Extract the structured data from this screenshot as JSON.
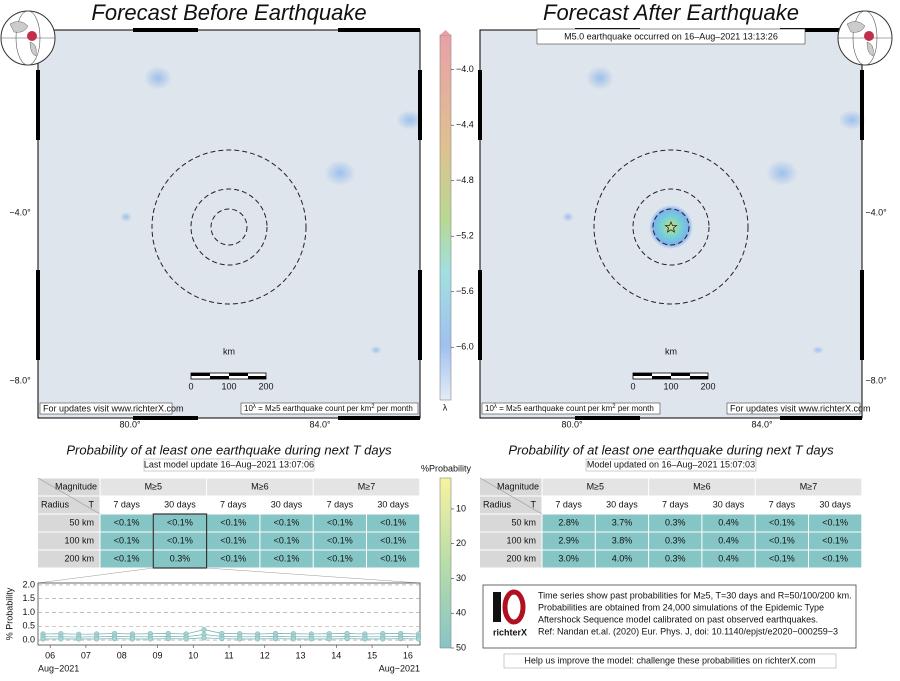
{
  "maps": [
    {
      "title": "Forecast Before Earthquake",
      "updates": "For updates visit www.richterX.com",
      "legend_parts": [
        "10",
        "λ",
        " = M≥5 earthquake count per km",
        "2",
        " per month"
      ],
      "lat_labels": [
        "−4.0°",
        "−8.0°"
      ],
      "lon_labels": [
        "80.0°",
        "84.0°"
      ],
      "scale": {
        "unit": "km",
        "labels": [
          "0",
          "100",
          "200"
        ]
      }
    },
    {
      "title": "Forecast After Earthquake",
      "annotation": "M5.0 earthquake occurred on 16–Aug–2021 13:13:26",
      "updates": "For updates visit www.richterX.com",
      "legend_parts": [
        "10",
        "λ",
        " = M≥5 earthquake count per km",
        "2",
        " per month"
      ],
      "lat_labels": [
        "−4.0°",
        "−8.0°"
      ],
      "lon_labels": [
        "80.0°",
        "84.0°"
      ],
      "scale": {
        "unit": "km",
        "labels": [
          "0",
          "100",
          "200"
        ]
      }
    }
  ],
  "rate_colorbar": {
    "label": "λ",
    "clim": [
      -3.75,
      -6.38
    ],
    "ticks": [
      {
        "value": -4.0,
        "label": "−4.0"
      },
      {
        "value": -4.4,
        "label": "−4.4"
      },
      {
        "value": -4.8,
        "label": "−4.8"
      },
      {
        "value": -5.2,
        "label": "−5.2"
      },
      {
        "value": -5.6,
        "label": "−5.6"
      },
      {
        "value": -6.0,
        "label": "−6.0"
      }
    ]
  },
  "prob_colorbar": {
    "label": "%Probability",
    "clim": [
      1.1,
      50
    ],
    "ticks": [
      10,
      20,
      30,
      40,
      50
    ]
  },
  "tables": [
    {
      "title": "Probability of at least one earthquake during next T days",
      "subtitle": "Last model update 16–Aug–2021 13:07:06",
      "corner": {
        "magnitude": "Magnitude",
        "radius": "Radius",
        "t": "T"
      },
      "magnitudes": [
        "M≥5",
        "M≥6",
        "M≥7"
      ],
      "periods": [
        "7 days",
        "30 days",
        "7 days",
        "30 days",
        "7 days",
        "30 days"
      ],
      "rows": [
        {
          "label": "50 km",
          "cells": [
            "<0.1%",
            "<0.1%",
            "<0.1%",
            "<0.1%",
            "<0.1%",
            "<0.1%"
          ]
        },
        {
          "label": "100 km",
          "cells": [
            "<0.1%",
            "<0.1%",
            "<0.1%",
            "<0.1%",
            "<0.1%",
            "<0.1%"
          ]
        },
        {
          "label": "200 km",
          "cells": [
            "<0.1%",
            "0.3%",
            "<0.1%",
            "<0.1%",
            "<0.1%",
            "<0.1%"
          ]
        }
      ]
    },
    {
      "title": "Probability of at least one earthquake during next T days",
      "subtitle": "Model updated on 16–Aug–2021 15:07:03",
      "corner": {
        "magnitude": "Magnitude",
        "radius": "Radius",
        "t": "T"
      },
      "magnitudes": [
        "M≥5",
        "M≥6",
        "M≥7"
      ],
      "periods": [
        "7 days",
        "30 days",
        "7 days",
        "30 days",
        "7 days",
        "30 days"
      ],
      "rows": [
        {
          "label": "50 km",
          "cells": [
            "2.8%",
            "3.7%",
            "0.3%",
            "0.4%",
            "<0.1%",
            "<0.1%"
          ]
        },
        {
          "label": "100 km",
          "cells": [
            "2.9%",
            "3.8%",
            "0.3%",
            "0.4%",
            "<0.1%",
            "<0.1%"
          ]
        },
        {
          "label": "200 km",
          "cells": [
            "3.0%",
            "4.0%",
            "0.3%",
            "0.4%",
            "<0.1%",
            "<0.1%"
          ]
        }
      ]
    }
  ],
  "chart_data": {
    "type": "scatter",
    "ylabel": "% Probability",
    "ylim": [
      -0.18,
      2.07
    ],
    "xlim": [
      5.66,
      16.34
    ],
    "grid": true,
    "yticks": [
      {
        "value": 0,
        "label": "0.0"
      },
      {
        "value": 0.5,
        "label": "0.5"
      },
      {
        "value": 1,
        "label": "1.0"
      },
      {
        "value": 1.5,
        "label": "1.5"
      },
      {
        "value": 2,
        "label": "2.0"
      }
    ],
    "xticks": [
      {
        "value": 6,
        "label": "06"
      },
      {
        "value": 7,
        "label": "07"
      },
      {
        "value": 8,
        "label": "08"
      },
      {
        "value": 9,
        "label": "09"
      },
      {
        "value": 10,
        "label": "10"
      },
      {
        "value": 11,
        "label": "11"
      },
      {
        "value": 12,
        "label": "12"
      },
      {
        "value": 13,
        "label": "13"
      },
      {
        "value": 14,
        "label": "14"
      },
      {
        "value": 15,
        "label": "15"
      },
      {
        "value": 16,
        "label": "16"
      }
    ],
    "x_period_labels": [
      "Aug−2021",
      "Aug−2021"
    ],
    "x": [
      5.8,
      6.3,
      6.8,
      7.3,
      7.8,
      8.3,
      8.8,
      9.3,
      9.8,
      10.3,
      10.8,
      11.3,
      11.8,
      12.3,
      12.8,
      13.3,
      13.8,
      14.3,
      14.8,
      15.3,
      15.8,
      16.3
    ],
    "series": [
      {
        "color": "#7fb8b8",
        "values": [
          0.22,
          0.23,
          0.21,
          0.22,
          0.24,
          0.22,
          0.23,
          0.24,
          0.22,
          0.38,
          0.24,
          0.23,
          0.22,
          0.24,
          0.23,
          0.22,
          0.23,
          0.24,
          0.22,
          0.23,
          0.24,
          0.22
        ]
      },
      {
        "color": "#7fb8b8",
        "values": [
          0.12,
          0.12,
          0.11,
          0.12,
          0.13,
          0.12,
          0.12,
          0.13,
          0.12,
          0.2,
          0.13,
          0.12,
          0.12,
          0.13,
          0.12,
          0.12,
          0.12,
          0.13,
          0.12,
          0.12,
          0.13,
          0.12
        ]
      },
      {
        "color": "#7fb8b8",
        "values": [
          0.04,
          0.04,
          0.04,
          0.04,
          0.05,
          0.04,
          0.04,
          0.05,
          0.04,
          0.08,
          0.05,
          0.04,
          0.04,
          0.05,
          0.04,
          0.04,
          0.04,
          0.05,
          0.04,
          0.04,
          0.05,
          0.04
        ]
      }
    ]
  },
  "info": {
    "logo": "richterX",
    "lines": [
      "Time series show past probabilities for M≥5, T=30 days and R=50/100/200 km.",
      "Probabilities are obtained from 24,000 simulations of the Epidemic Type",
      "Aftershock Sequence model calibrated on past observed earthquakes.",
      "Ref: Nandan et.al. (2020) Eur. Phys. J, doi: 10.1140/epjst/e2020−000259−3"
    ]
  },
  "footer": "Help us improve the model: challenge these probabilities on richterX.com"
}
